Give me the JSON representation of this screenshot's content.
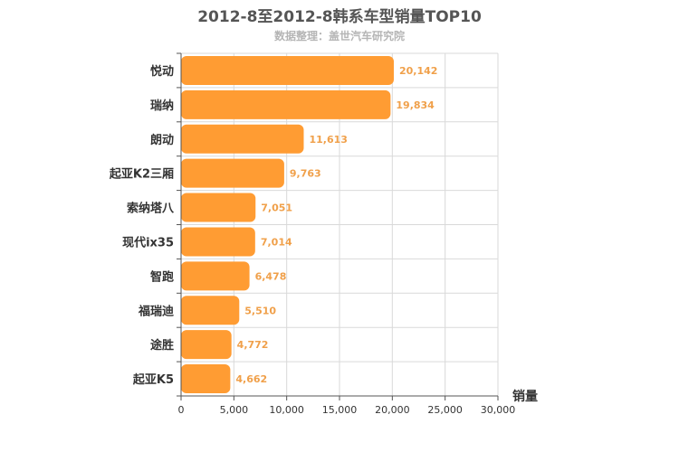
{
  "title": "2012-8至2012-8韩系车型销量TOP10",
  "subtitle": "数据整理：盖世汽车研究院",
  "colors": {
    "bar": "#ff9c33",
    "grid": "#d9d9d9",
    "axis": "#555555",
    "data_label": "#f0a04a"
  },
  "chart_data": {
    "type": "bar",
    "orientation": "horizontal",
    "title": "2012-8至2012-8韩系车型销量TOP10",
    "subtitle": "数据整理：盖世汽车研究院",
    "categories": [
      "悦动",
      "瑞纳",
      "朗动",
      "起亚K2三厢",
      "索纳塔八",
      "现代ix35",
      "智跑",
      "福瑞迪",
      "途胜",
      "起亚K5"
    ],
    "values": [
      20142,
      19834,
      11613,
      9763,
      7051,
      7014,
      6478,
      5510,
      4772,
      4662
    ],
    "value_labels": [
      "20,142",
      "19,834",
      "11,613",
      "9,763",
      "7,051",
      "7,014",
      "6,478",
      "5,510",
      "4,772",
      "4,662"
    ],
    "xlabel": "销量",
    "ylabel": "",
    "xlim": [
      0,
      30000
    ],
    "xticks": [
      0,
      5000,
      10000,
      15000,
      20000,
      25000,
      30000
    ],
    "xtick_labels": [
      "0",
      "5,000",
      "10,000",
      "15,000",
      "20,000",
      "25,000",
      "30,000"
    ],
    "grid": true,
    "legend": "none"
  }
}
